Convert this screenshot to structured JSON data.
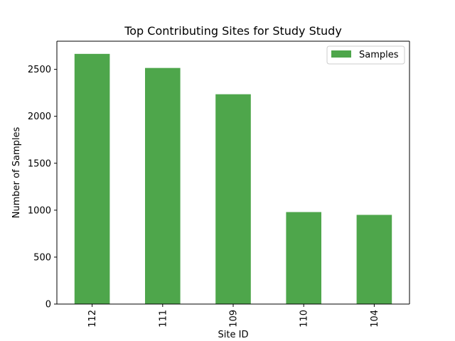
{
  "chart_data": {
    "type": "bar",
    "title": "Top Contributing Sites for Study Study",
    "xlabel": "Site ID",
    "ylabel": "Number of Samples",
    "categories": [
      "112",
      "111",
      "109",
      "110",
      "104"
    ],
    "series": [
      {
        "name": "Samples",
        "values": [
          2665,
          2515,
          2235,
          980,
          950
        ]
      }
    ],
    "ylim": [
      0,
      2800
    ],
    "yticks": [
      0,
      500,
      1000,
      1500,
      2000,
      2500
    ],
    "grid": false,
    "legend_position": "top-right",
    "colors": {
      "bar": "#4ea64b"
    }
  }
}
